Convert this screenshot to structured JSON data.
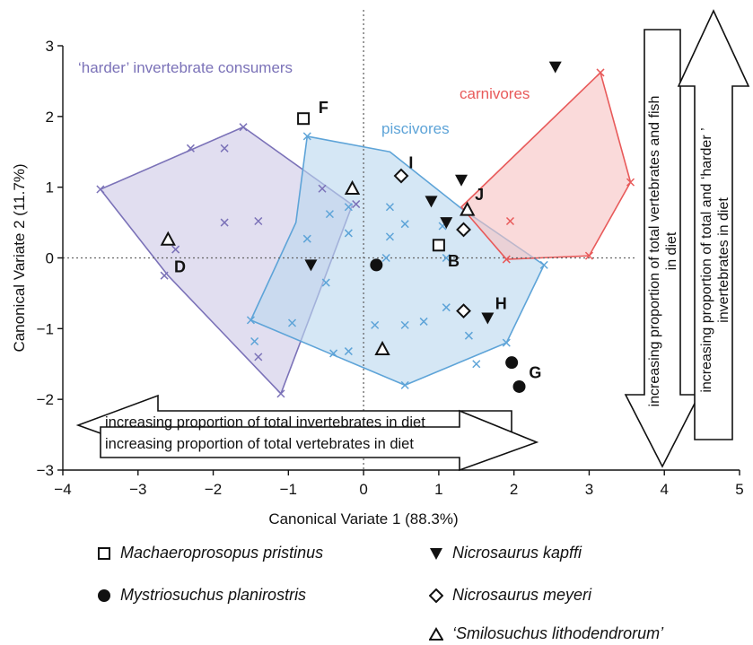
{
  "chart_data": {
    "type": "scatter",
    "xlabel": "Canonical Variate 1 (88.3%)",
    "ylabel": "Canonical Variate 2 (11.7%)",
    "xlim": [
      -4,
      5
    ],
    "ylim": [
      -3,
      3
    ],
    "x_ticks": [
      "−4",
      "−3",
      "−2",
      "−1",
      "0",
      "1",
      "2",
      "3",
      "4",
      "5"
    ],
    "y_ticks": [
      "−3",
      "−2",
      "−1",
      "0",
      "1",
      "2",
      "3"
    ],
    "reference_lines": {
      "x": 0,
      "y": 0,
      "style": "dotted"
    },
    "groups": [
      {
        "name": "‘harder’ invertebrate consumers",
        "color": "#7b72b8",
        "fill": "#cfc9e6",
        "hull": [
          [
            -3.5,
            0.97
          ],
          [
            -1.6,
            1.85
          ],
          [
            -0.15,
            0.75
          ],
          [
            -1.1,
            -1.92
          ],
          [
            -2.6,
            -0.25
          ]
        ],
        "points": [
          [
            -3.5,
            0.97
          ],
          [
            -2.3,
            1.55
          ],
          [
            -1.85,
            1.55
          ],
          [
            -1.6,
            1.85
          ],
          [
            -0.55,
            0.98
          ],
          [
            -0.1,
            0.76
          ],
          [
            -1.85,
            0.5
          ],
          [
            -1.4,
            0.52
          ],
          [
            -2.5,
            0.12
          ],
          [
            -2.65,
            -0.25
          ],
          [
            -1.4,
            -1.4
          ],
          [
            -1.1,
            -1.92
          ]
        ]
      },
      {
        "name": "piscivores",
        "color": "#5ea4d8",
        "fill": "#bcd8ef",
        "hull": [
          [
            -0.75,
            1.72
          ],
          [
            0.35,
            1.5
          ],
          [
            1.3,
            0.7
          ],
          [
            2.4,
            -0.1
          ],
          [
            1.9,
            -1.2
          ],
          [
            0.55,
            -1.8
          ],
          [
            -1.5,
            -0.88
          ],
          [
            -0.9,
            0.5
          ]
        ],
        "points": [
          [
            -0.75,
            1.72
          ],
          [
            -0.75,
            0.27
          ],
          [
            -0.45,
            0.62
          ],
          [
            -0.2,
            0.72
          ],
          [
            -0.2,
            0.35
          ],
          [
            0.35,
            0.72
          ],
          [
            0.35,
            0.3
          ],
          [
            0.55,
            0.48
          ],
          [
            1.05,
            0.45
          ],
          [
            1.1,
            0.0
          ],
          [
            0.3,
            0.0
          ],
          [
            -0.5,
            -0.35
          ],
          [
            0.15,
            -0.1
          ],
          [
            0.15,
            -0.95
          ],
          [
            0.55,
            -0.95
          ],
          [
            0.8,
            -0.9
          ],
          [
            1.1,
            -0.7
          ],
          [
            1.4,
            -1.1
          ],
          [
            1.9,
            -1.2
          ],
          [
            1.5,
            -1.5
          ],
          [
            0.55,
            -1.8
          ],
          [
            -0.4,
            -1.35
          ],
          [
            -0.2,
            -1.32
          ],
          [
            -0.95,
            -0.92
          ],
          [
            -1.5,
            -0.88
          ],
          [
            -1.45,
            -1.18
          ],
          [
            2.4,
            -0.1
          ]
        ]
      },
      {
        "name": "carnivores",
        "color": "#e85a5a",
        "fill": "#f7c3c3",
        "hull": [
          [
            3.15,
            2.62
          ],
          [
            3.55,
            1.07
          ],
          [
            3.0,
            0.03
          ],
          [
            1.9,
            -0.02
          ],
          [
            1.3,
            0.72
          ]
        ],
        "points": [
          [
            3.15,
            2.62
          ],
          [
            3.55,
            1.07
          ],
          [
            3.0,
            0.03
          ],
          [
            1.9,
            -0.02
          ],
          [
            1.95,
            0.52
          ]
        ]
      }
    ],
    "series": [
      {
        "name": "Machaeroprosopus pristinus",
        "marker": "square-open",
        "points": [
          [
            -0.8,
            1.97
          ],
          [
            1.0,
            0.18
          ]
        ]
      },
      {
        "name": "Mystriosuchus planirostris",
        "marker": "circle-filled",
        "points": [
          [
            0.17,
            -0.1
          ],
          [
            1.97,
            -1.48
          ],
          [
            2.07,
            -1.82
          ]
        ]
      },
      {
        "name": "Nicrosaurus kapffi",
        "marker": "triangle-down-filled",
        "points": [
          [
            2.55,
            2.7
          ],
          [
            1.3,
            1.1
          ],
          [
            0.9,
            0.8
          ],
          [
            1.1,
            0.5
          ],
          [
            -0.7,
            -0.1
          ],
          [
            1.65,
            -0.85
          ]
        ]
      },
      {
        "name": "Nicrosaurus meyeri",
        "marker": "diamond-open",
        "points": [
          [
            0.5,
            1.16
          ],
          [
            1.33,
            0.4
          ],
          [
            1.33,
            -0.75
          ]
        ]
      },
      {
        "name": "‘Smilosuchus lithodendrorum’",
        "marker": "triangle-up-open",
        "points": [
          [
            -2.6,
            0.25
          ],
          [
            -0.15,
            0.97
          ],
          [
            1.38,
            0.67
          ],
          [
            0.25,
            -1.3
          ]
        ]
      }
    ],
    "point_labels": [
      {
        "text": "F",
        "x": -0.6,
        "y": 2.05
      },
      {
        "text": "I",
        "x": 0.6,
        "y": 1.27
      },
      {
        "text": "J",
        "x": 1.48,
        "y": 0.82
      },
      {
        "text": "D",
        "x": -2.52,
        "y": -0.2
      },
      {
        "text": "B",
        "x": 1.12,
        "y": -0.12
      },
      {
        "text": "H",
        "x": 1.75,
        "y": -0.72
      },
      {
        "text": "G",
        "x": 2.2,
        "y": -1.7
      }
    ],
    "annotations": {
      "horizontal_arrow_left": "increasing proportion of total invertebrates in diet",
      "horizontal_arrow_right": "increasing proportion of total vertebrates in diet",
      "vertical_arrow_down": "increasing proportion of total vertebrates and fish in diet",
      "vertical_arrow_up": "increasing proportion of total and ‘harder ’ invertebrates in diet"
    }
  }
}
